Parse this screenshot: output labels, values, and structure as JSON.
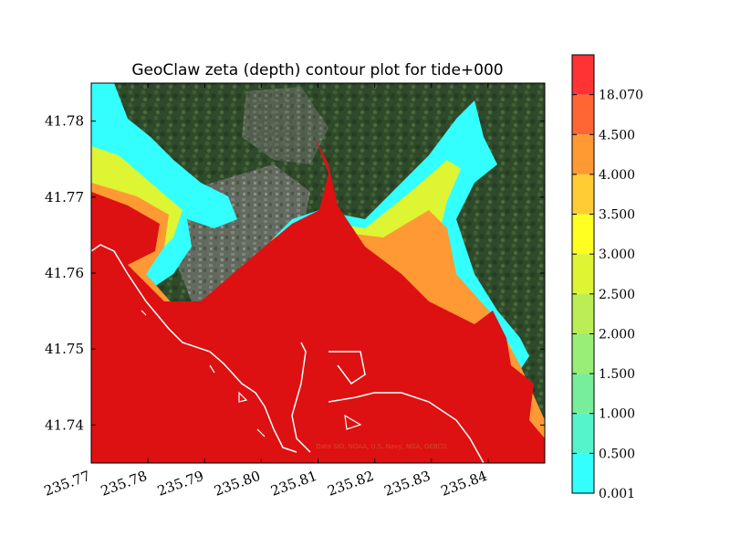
{
  "chart_data": {
    "type": "heatmap",
    "title": "GeoClaw zeta (depth) contour plot for tide+000",
    "xlabel": "",
    "ylabel": "",
    "x_ticks": [
      "235.77",
      "235.78",
      "235.79",
      "235.80",
      "235.81",
      "235.82",
      "235.83",
      "235.84"
    ],
    "x_tick_values": [
      235.77,
      235.78,
      235.79,
      235.8,
      235.81,
      235.82,
      235.83,
      235.84
    ],
    "y_ticks": [
      "41.74",
      "41.75",
      "41.76",
      "41.77",
      "41.78"
    ],
    "y_tick_values": [
      41.74,
      41.75,
      41.76,
      41.77,
      41.78
    ],
    "xlim": [
      235.77,
      235.85
    ],
    "ylim": [
      41.735,
      41.785
    ],
    "colorbar": {
      "levels": [
        "0.001",
        "0.500",
        "1.000",
        "1.500",
        "2.000",
        "2.500",
        "3.000",
        "3.500",
        "4.000",
        "4.500",
        "18.070"
      ],
      "colors": [
        "#33ffff",
        "#55f5cc",
        "#77ee99",
        "#99ee77",
        "#bbee55",
        "#ddf533",
        "#ffff22",
        "#ffcc33",
        "#ff9933",
        "#ff6633",
        "#ff3333"
      ]
    },
    "background": "satellite imagery",
    "attribution": "Data SIO, NOAA, U.S. Navy, NGA, GEBCO",
    "inundation_color": "#dd1111",
    "coastline_color": "#ffffff"
  }
}
